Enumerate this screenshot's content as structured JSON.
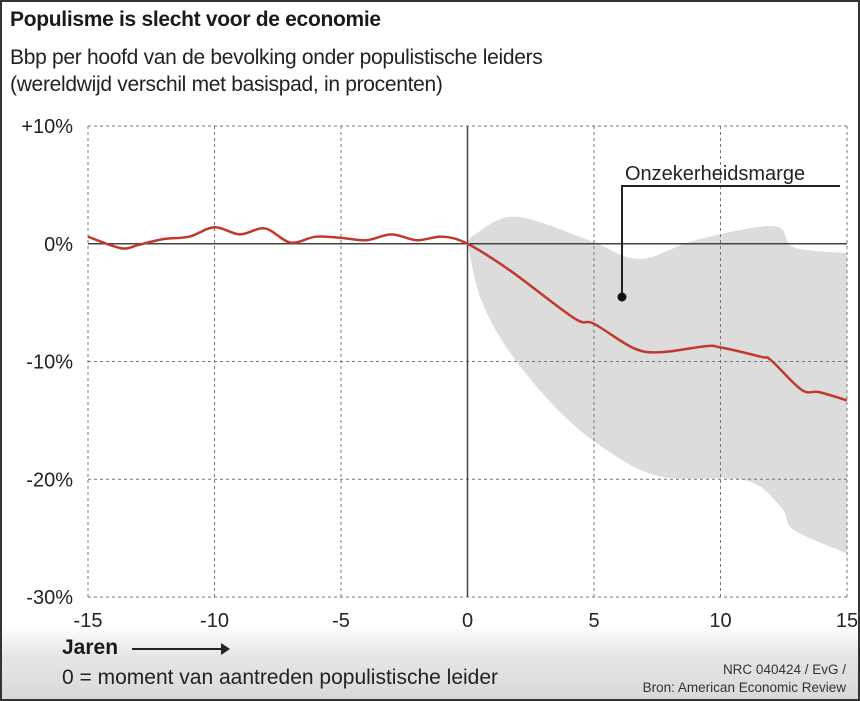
{
  "title": "Populisme is slecht voor de economie",
  "subtitle_line1": "Bbp per hoofd van de bevolking onder populistische leiders",
  "subtitle_line2": "(wereldwijd verschil met basispad, in procenten)",
  "footer": {
    "xlabel": "Jaren",
    "note": "0 = moment van aantreden populistische leider",
    "credit": "NRC 040424 / EvG /",
    "source": "Bron: American Economic Review"
  },
  "chart_data": {
    "type": "line",
    "title": "Populisme is slecht voor de economie",
    "xlabel": "Jaren",
    "ylabel": "",
    "xlim": [
      -15,
      15
    ],
    "ylim": [
      -30,
      10
    ],
    "grid": true,
    "x_ticks": [
      -15,
      -10,
      -5,
      0,
      5,
      10,
      15
    ],
    "x_tick_labels": [
      "-15",
      "-10",
      "-5",
      "0",
      "5",
      "10",
      "15"
    ],
    "y_ticks": [
      10,
      0,
      -10,
      -20,
      -30
    ],
    "y_tick_labels": [
      "+10%",
      "0%",
      "-10%",
      "-20%",
      "-30%"
    ],
    "line_color": "#c0392b",
    "band_color": "#dcdcdc",
    "series": [
      {
        "x": [
          -15,
          -14,
          -13.5,
          -13,
          -12,
          -11,
          -10,
          -9,
          -8,
          -7,
          -6,
          -5,
          -4,
          -3,
          -2,
          -1,
          0,
          1.7,
          4.2,
          5,
          6.6,
          7.7,
          9.4,
          10,
          11.6,
          12,
          13.2,
          13.9,
          15
        ],
        "y": [
          0.6,
          -0.2,
          -0.4,
          -0.1,
          0.4,
          0.6,
          1.4,
          0.8,
          1.3,
          0.1,
          0.6,
          0.5,
          0.3,
          0.8,
          0.3,
          0.6,
          0,
          -2.3,
          -6.3,
          -6.8,
          -8.9,
          -9.2,
          -8.7,
          -8.8,
          -9.6,
          -9.9,
          -12.4,
          -12.6,
          -13.3
        ]
      }
    ],
    "band": {
      "label": "Onzekerheidsmarge",
      "upper": {
        "x": [
          0,
          0.3,
          1.9,
          4.8,
          6.8,
          9,
          12.1,
          12.9,
          15
        ],
        "y": [
          0,
          0.8,
          2.3,
          0.3,
          -1.3,
          0.3,
          1.5,
          -0.3,
          -0.8
        ]
      },
      "lower": {
        "x": [
          0,
          0.55,
          1.7,
          3.7,
          5.7,
          7.7,
          11,
          12.4,
          12.9,
          15
        ],
        "y": [
          0,
          -4.8,
          -9.3,
          -14.4,
          -17.8,
          -19.8,
          -20.1,
          -22.4,
          -24.3,
          -26.3
        ]
      }
    }
  }
}
